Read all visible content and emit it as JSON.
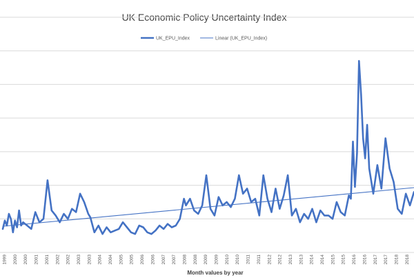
{
  "chart_data": {
    "type": "line",
    "title": "UK Economic Policy Uncertainty Index",
    "xlabel": "Month values by year",
    "ylabel": "",
    "xlim": [
      1999.0,
      2019.2
    ],
    "ylim": [
      0,
      700
    ],
    "grid": true,
    "legend_position": "top-center",
    "series_color": "#4472C4",
    "x_tick_labels": [
      "1999",
      "2000",
      "2000",
      "2001",
      "2001",
      "2002",
      "2002",
      "2003",
      "2003",
      "2004",
      "2004",
      "2005",
      "2005",
      "2006",
      "2006",
      "2007",
      "2007",
      "2008",
      "2008",
      "2009",
      "2009",
      "2010",
      "2010",
      "2011",
      "2011",
      "2012",
      "2012",
      "2013",
      "2013",
      "2014",
      "2014",
      "2015",
      "2015",
      "2016",
      "2016",
      "2017",
      "2017",
      "2018",
      "2018",
      "2019"
    ],
    "series": [
      {
        "name": "UK_EPU_Index",
        "x": [
          1999.0,
          1999.1,
          1999.2,
          1999.3,
          1999.4,
          1999.5,
          1999.6,
          1999.7,
          1999.8,
          1999.9,
          2000.0,
          2000.2,
          2000.4,
          2000.6,
          2000.8,
          2001.0,
          2001.2,
          2001.4,
          2001.6,
          2001.8,
          2002.0,
          2002.2,
          2002.4,
          2002.6,
          2002.8,
          2003.0,
          2003.2,
          2003.3,
          2003.5,
          2003.7,
          2003.9,
          2004.1,
          2004.3,
          2004.5,
          2004.7,
          2004.9,
          2005.1,
          2005.3,
          2005.5,
          2005.7,
          2005.9,
          2006.1,
          2006.3,
          2006.5,
          2006.7,
          2006.9,
          2007.1,
          2007.3,
          2007.5,
          2007.7,
          2007.9,
          2008.0,
          2008.2,
          2008.4,
          2008.6,
          2008.8,
          2009.0,
          2009.2,
          2009.4,
          2009.6,
          2009.8,
          2010.0,
          2010.2,
          2010.4,
          2010.6,
          2010.8,
          2011.0,
          2011.2,
          2011.4,
          2011.6,
          2011.8,
          2012.0,
          2012.2,
          2012.4,
          2012.6,
          2012.8,
          2013.0,
          2013.2,
          2013.4,
          2013.6,
          2013.8,
          2014.0,
          2014.2,
          2014.4,
          2014.6,
          2014.8,
          2015.0,
          2015.2,
          2015.4,
          2015.6,
          2015.8,
          2016.0,
          2016.1,
          2016.2,
          2016.3,
          2016.4,
          2016.5,
          2016.6,
          2016.7,
          2016.8,
          2016.9,
          2017.0,
          2017.2,
          2017.4,
          2017.6,
          2017.8,
          2018.0,
          2018.2,
          2018.4,
          2018.6,
          2018.8,
          2019.0,
          2019.2
        ],
        "values": [
          70,
          95,
          80,
          115,
          100,
          60,
          95,
          75,
          125,
          80,
          90,
          80,
          70,
          120,
          90,
          100,
          215,
          125,
          110,
          90,
          115,
          100,
          130,
          120,
          175,
          150,
          115,
          105,
          60,
          80,
          55,
          75,
          60,
          65,
          70,
          90,
          75,
          60,
          55,
          80,
          75,
          60,
          55,
          65,
          80,
          70,
          85,
          75,
          80,
          100,
          160,
          140,
          160,
          125,
          115,
          140,
          230,
          130,
          110,
          165,
          140,
          150,
          135,
          160,
          230,
          175,
          190,
          150,
          160,
          110,
          230,
          160,
          120,
          190,
          130,
          170,
          230,
          110,
          130,
          90,
          115,
          100,
          130,
          90,
          125,
          110,
          110,
          100,
          150,
          120,
          110,
          170,
          160,
          330,
          195,
          295,
          570,
          470,
          340,
          280,
          380,
          250,
          175,
          260,
          190,
          340,
          250,
          210,
          130,
          115,
          175,
          140,
          180
        ]
      },
      {
        "name": "Linear (UK_EPU_Index)",
        "x": [
          1999.0,
          2019.2
        ],
        "values": [
          78,
          193
        ]
      }
    ]
  }
}
